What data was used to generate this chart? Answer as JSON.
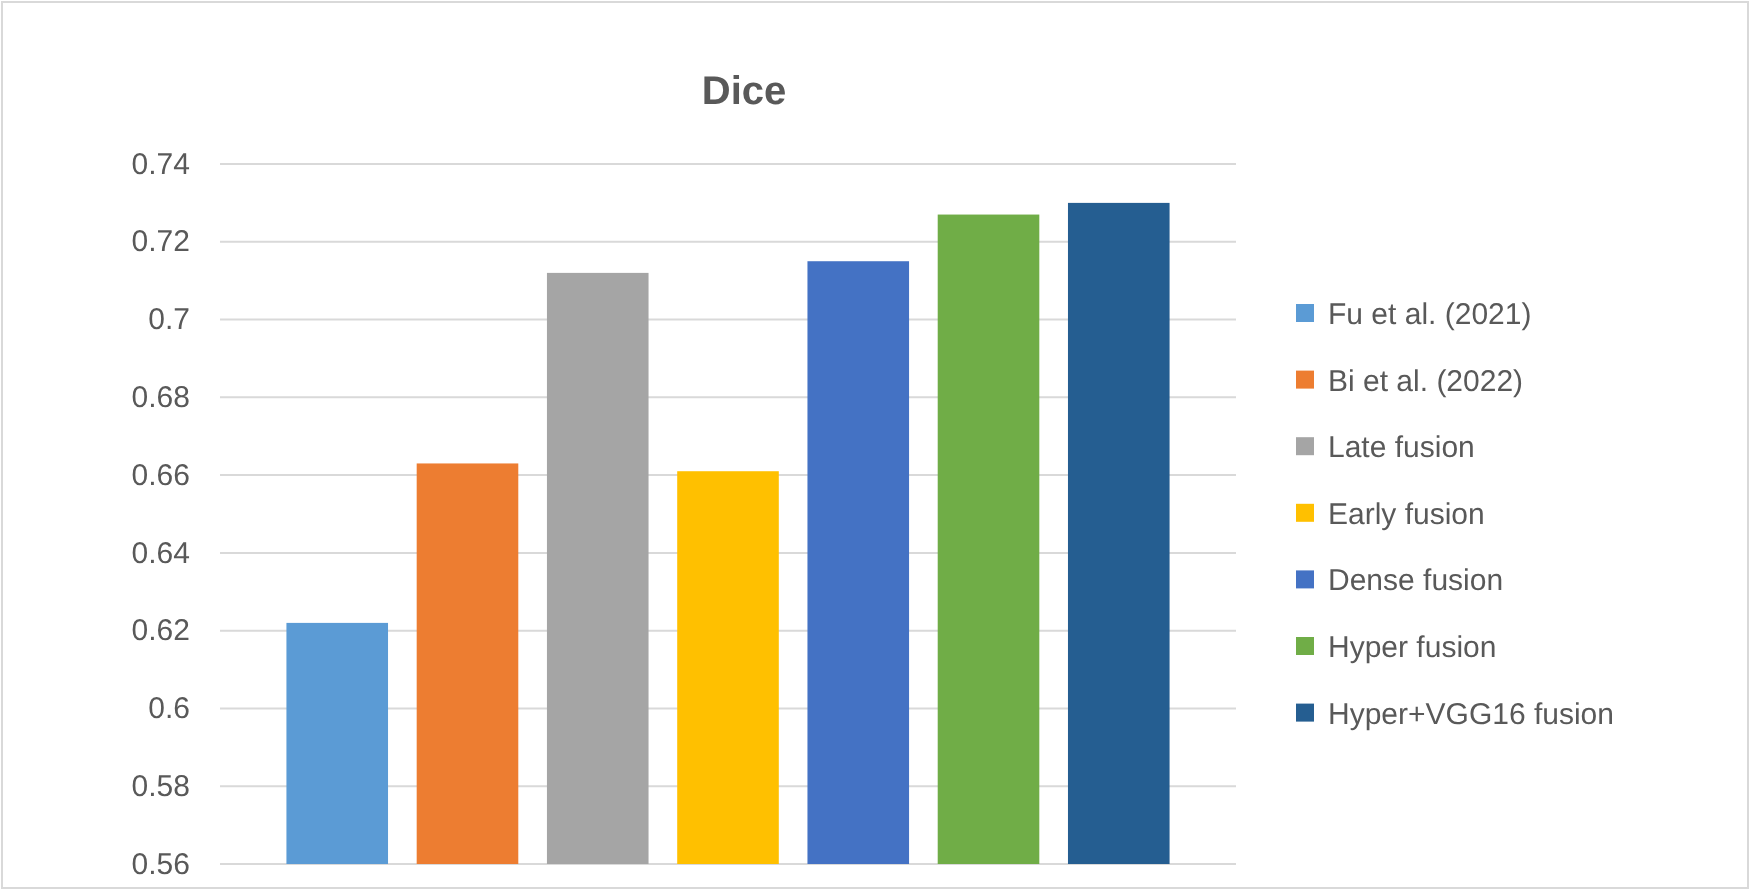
{
  "chart_data": {
    "type": "bar",
    "title": "Dice",
    "categories": [
      null
    ],
    "series": [
      {
        "name": "Fu et al. (2021)",
        "color": "#5b9bd5",
        "values": [
          0.622
        ]
      },
      {
        "name": "Bi et al. (2022)",
        "color": "#ed7d31",
        "values": [
          0.663
        ]
      },
      {
        "name": "Late fusion",
        "color": "#a5a5a5",
        "values": [
          0.712
        ]
      },
      {
        "name": "Early fusion",
        "color": "#ffc000",
        "values": [
          0.661
        ]
      },
      {
        "name": "Dense fusion",
        "color": "#4472c4",
        "values": [
          0.715
        ]
      },
      {
        "name": "Hyper fusion",
        "color": "#70ad47",
        "values": [
          0.727
        ]
      },
      {
        "name": "Hyper+VGG16 fusion",
        "color": "#255e91",
        "values": [
          0.73
        ]
      }
    ],
    "ylim": [
      0.56,
      0.74
    ],
    "yticks": [
      0.56,
      0.58,
      0.6,
      0.62,
      0.64,
      0.66,
      0.68,
      0.7,
      0.72,
      0.74
    ],
    "grid": "y",
    "legend": "right"
  }
}
